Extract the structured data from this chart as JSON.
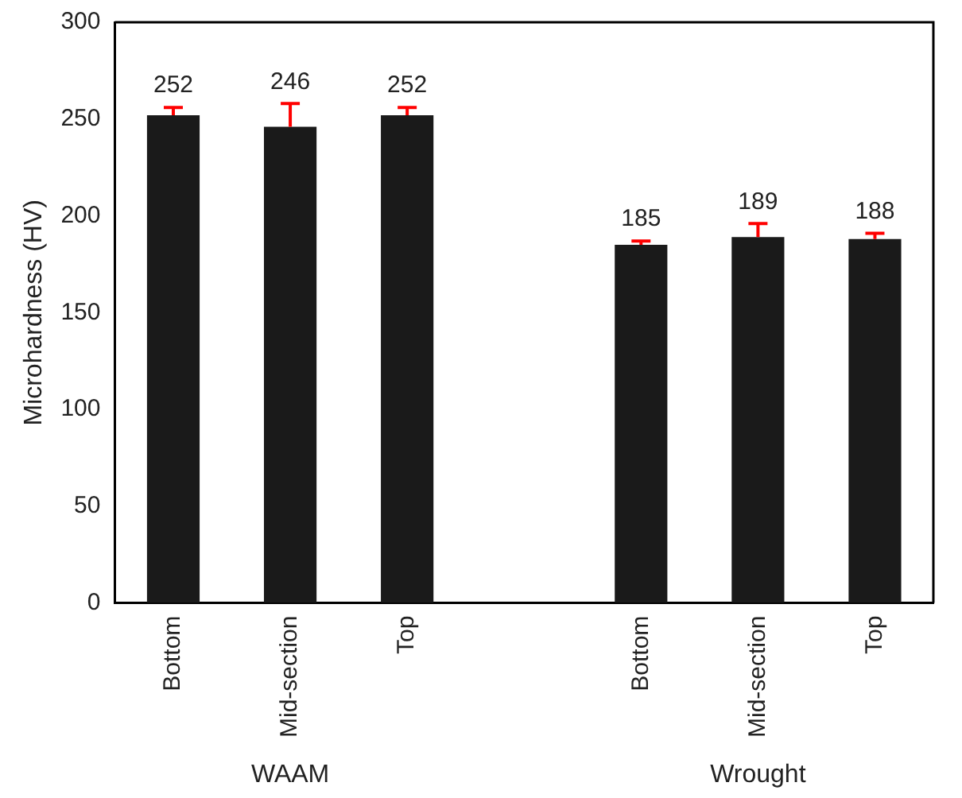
{
  "chart_data": {
    "type": "bar",
    "ylabel": "Microhardness (HV)",
    "categories": [
      "Bottom",
      "Mid-section",
      "Top",
      null,
      "Bottom",
      "Mid-section",
      "Top"
    ],
    "values": [
      252,
      246,
      252,
      null,
      185,
      189,
      188
    ],
    "errors": [
      [
        252,
        256
      ],
      [
        246,
        258
      ],
      [
        252,
        256
      ],
      null,
      [
        185,
        187
      ],
      [
        189,
        196
      ],
      [
        188,
        191
      ]
    ],
    "color": "#1a1a1a",
    "ylim": [
      0,
      300
    ],
    "yticks": [
      0,
      50,
      100,
      150,
      200,
      250,
      300
    ],
    "grid": false,
    "legend": false,
    "data_labels": true,
    "annotations": [
      "WAAM",
      "Wrought"
    ]
  }
}
